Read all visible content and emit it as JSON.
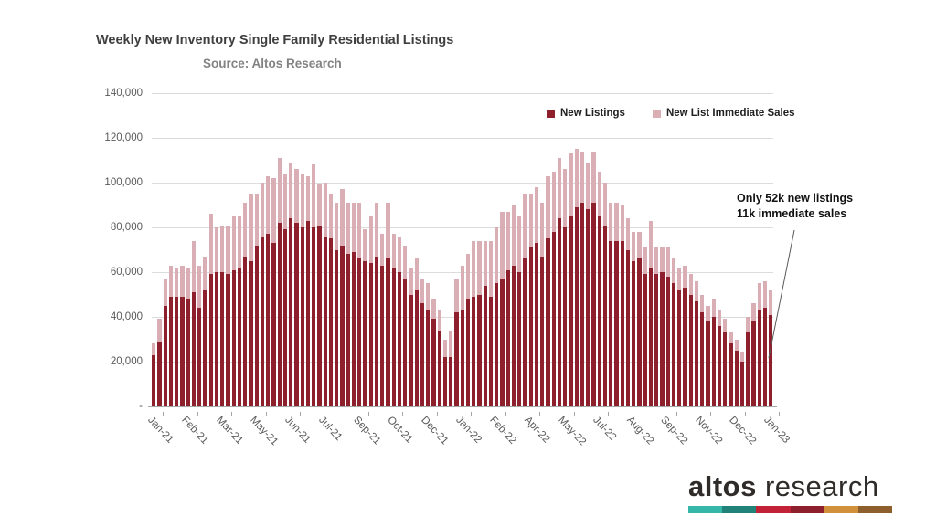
{
  "title": "Weekly New Inventory Single Family Residential Listings",
  "subtitle": "Source: Altos Research",
  "legend": [
    {
      "label": "New Listings",
      "color": "#8e1f2d"
    },
    {
      "label": "New List Immediate Sales",
      "color": "#d9aeb4"
    }
  ],
  "annotation": {
    "line1": "Only 52k new listings",
    "line2": "11k immediate sales"
  },
  "logo": {
    "bold": "altos",
    "light": " research",
    "bar_colors": [
      "#35b7a9",
      "#21827a",
      "#c22136",
      "#8e1f2d",
      "#d0913a",
      "#8d5f2c"
    ]
  },
  "chart_data": {
    "type": "bar",
    "stacked": true,
    "title": "Weekly New Inventory Single Family Residential Listings",
    "source": "Altos Research",
    "ylim": [
      0,
      140000
    ],
    "grid": true,
    "legend_position": "top-right",
    "y_tick_labels": [
      "140,000",
      "120,000",
      "100,000",
      "80,000",
      "60,000",
      "40,000",
      "20,000",
      "-"
    ],
    "y_tick_values": [
      140000,
      120000,
      100000,
      80000,
      60000,
      40000,
      20000,
      0
    ],
    "x_tick_labels": [
      "Jan-21",
      "Feb-21",
      "Mar-21",
      "May-21",
      "Jun-21",
      "Jul-21",
      "Sep-21",
      "Oct-21",
      "Dec-21",
      "Jan-22",
      "Feb-22",
      "Apr-22",
      "May-22",
      "Jul-22",
      "Aug-22",
      "Sep-22",
      "Nov-22",
      "Dec-22",
      "Jan-23"
    ],
    "tick_every": 6,
    "series": [
      {
        "name": "New Listings",
        "color": "#8e1f2d",
        "values": [
          23000,
          29000,
          45000,
          49000,
          49000,
          49000,
          48000,
          51000,
          44000,
          52000,
          59000,
          60000,
          60000,
          59000,
          61000,
          62000,
          67000,
          65000,
          72000,
          76000,
          77000,
          73000,
          82000,
          79000,
          84000,
          82000,
          80000,
          83000,
          80000,
          81000,
          76000,
          75000,
          70000,
          72000,
          68000,
          69000,
          66000,
          65000,
          64000,
          67000,
          63000,
          66000,
          62000,
          60000,
          57000,
          50000,
          52000,
          46000,
          43000,
          39000,
          34000,
          22000,
          22000,
          42000,
          43000,
          48000,
          49000,
          50000,
          54000,
          49000,
          55000,
          57000,
          61000,
          63000,
          60000,
          66000,
          71000,
          73000,
          67000,
          75000,
          78000,
          84000,
          80000,
          85000,
          89000,
          91000,
          88000,
          91000,
          85000,
          81000,
          74000,
          74000,
          74000,
          70000,
          65000,
          66000,
          59000,
          62000,
          59000,
          60000,
          58000,
          55000,
          52000,
          53000,
          50000,
          47000,
          42000,
          38000,
          40000,
          36000,
          33000,
          28000,
          25000,
          20000,
          33000,
          38000,
          43000,
          44000,
          41000
        ]
      },
      {
        "name": "New List Immediate Sales",
        "color": "#d9aeb4",
        "values": [
          5000,
          10000,
          12000,
          14000,
          13000,
          14000,
          14000,
          23000,
          19000,
          15000,
          27000,
          20000,
          21000,
          22000,
          24000,
          23000,
          24000,
          30000,
          23000,
          24000,
          26000,
          29000,
          29000,
          25000,
          25000,
          24000,
          24000,
          20000,
          28000,
          18000,
          24000,
          20000,
          21000,
          25000,
          23000,
          22000,
          25000,
          14000,
          21000,
          24000,
          14000,
          25000,
          15000,
          16000,
          15000,
          12000,
          14000,
          11000,
          12000,
          9000,
          9000,
          8000,
          12000,
          15000,
          20000,
          20000,
          25000,
          24000,
          20000,
          25000,
          25000,
          30000,
          26000,
          27000,
          25000,
          29000,
          24000,
          25000,
          24000,
          28000,
          27000,
          27000,
          26000,
          28000,
          26000,
          23000,
          21000,
          23000,
          20000,
          19000,
          17000,
          17000,
          16000,
          14000,
          13000,
          12000,
          12000,
          21000,
          12000,
          11000,
          13000,
          11000,
          10000,
          10000,
          9000,
          9000,
          8000,
          7000,
          8000,
          7000,
          6000,
          5000,
          5000,
          4000,
          7000,
          8000,
          12000,
          12000,
          11000
        ]
      }
    ],
    "callout": {
      "text": "Only 52k new listings 11k immediate sales",
      "target_week_index": 108,
      "target_values": {
        "new_listings": 41000,
        "immediate_sales": 11000,
        "total": 52000
      }
    }
  }
}
